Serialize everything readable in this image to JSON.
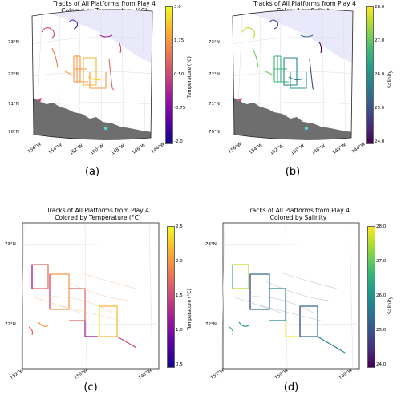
{
  "panels": [
    {
      "id": "a",
      "title": "Tracks of All Platforms from Play 4\nColored by Temperature (°C)",
      "letter": "(a)",
      "lat_labels": [
        "73°N",
        "72°N",
        "71°N",
        "70°N"
      ],
      "lon_labels": [
        "156°W",
        "154°W",
        "152°W",
        "150°W",
        "148°W",
        "146°W",
        "144°W"
      ],
      "colorbar": {
        "label": "Temperature (°C)",
        "cmap": "plasma",
        "ticks": [
          "3.0",
          "1.75",
          "0.50",
          "-0.75",
          "-2.0"
        ]
      }
    },
    {
      "id": "b",
      "title": "Tracks of All Platforms from Play 4\nColored by Salinity",
      "letter": "(b)",
      "lat_labels": [
        "73°N",
        "72°N",
        "71°N",
        "70°N"
      ],
      "lon_labels": [
        "156°W",
        "154°W",
        "152°W",
        "150°W",
        "148°W",
        "146°W",
        "144°W"
      ],
      "colorbar": {
        "label": "Salinity",
        "cmap": "viridis",
        "ticks": [
          "28.0",
          "27.0",
          "26.0",
          "25.0",
          "24.0"
        ]
      }
    },
    {
      "id": "c",
      "title": "Tracks of All Platforms from Play 4\nColored by Temperature (°C)",
      "letter": "(c)",
      "lat_labels": [
        "73°N",
        "72°N"
      ],
      "lon_labels": [
        "152°W",
        "150°W",
        "148°W"
      ],
      "colorbar": {
        "label": "Temperature (°C)",
        "cmap": "plasma",
        "ticks": [
          "2.5",
          "2.0",
          "1.5",
          "1.0",
          "0.5"
        ]
      }
    },
    {
      "id": "d",
      "title": "Tracks of All Platforms from Play 4\nColored by Salinity",
      "letter": "(d)",
      "lat_labels": [
        "73°N",
        "72°N"
      ],
      "lon_labels": [
        "152°W",
        "150°W",
        "148°W"
      ],
      "colorbar": {
        "label": "Salinity",
        "cmap": "viridis",
        "ticks": [
          "28.0",
          "27.0",
          "26.0",
          "25.0",
          "24.0"
        ]
      }
    }
  ],
  "colors": {
    "land": "#6e6e6e",
    "ice": "#e9e9fb",
    "grid": "#dddddd",
    "highlight": "#4fe0d9"
  }
}
